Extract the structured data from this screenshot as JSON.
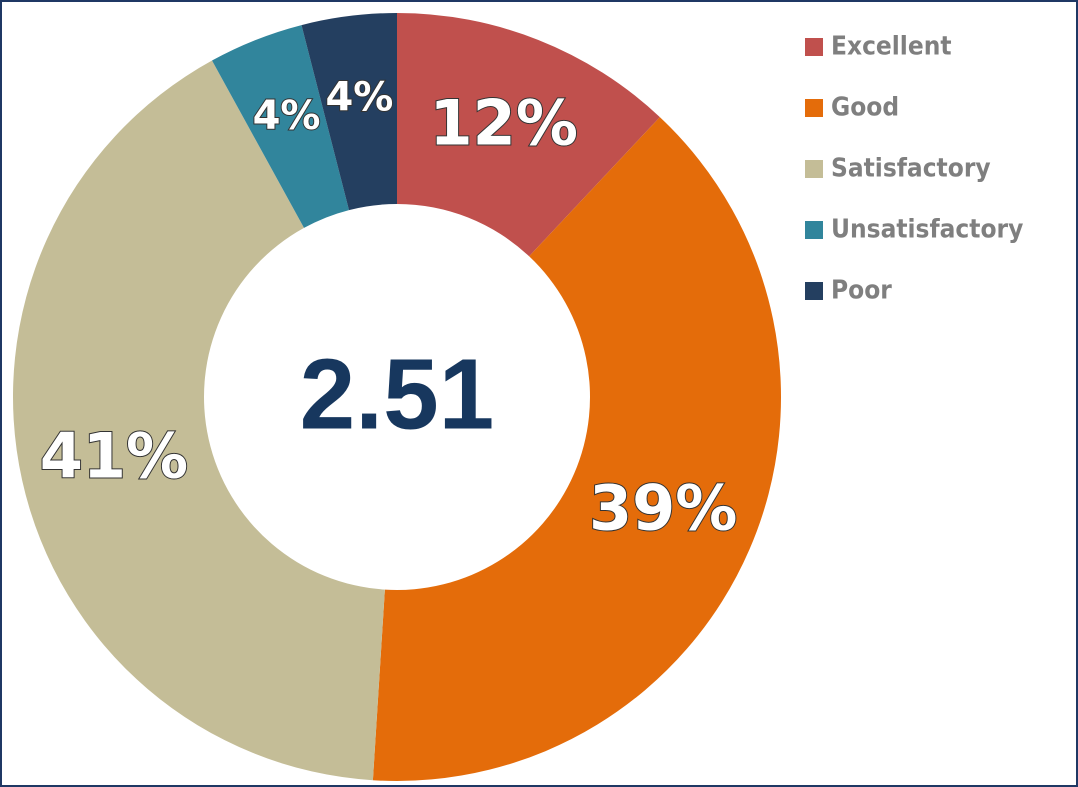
{
  "chart_data": {
    "type": "donut",
    "categories": [
      "Excellent",
      "Good",
      "Satisfactory",
      "Unsatisfactory",
      "Poor"
    ],
    "values": [
      12,
      39,
      41,
      4,
      4
    ],
    "value_labels": [
      "12%",
      "39%",
      "41%",
      "4%",
      "4%"
    ],
    "colors": [
      "#c0504d",
      "#e46c0a",
      "#c4bd97",
      "#31859c",
      "#243f60"
    ],
    "center_text": "2.51",
    "legend": "top-right"
  }
}
